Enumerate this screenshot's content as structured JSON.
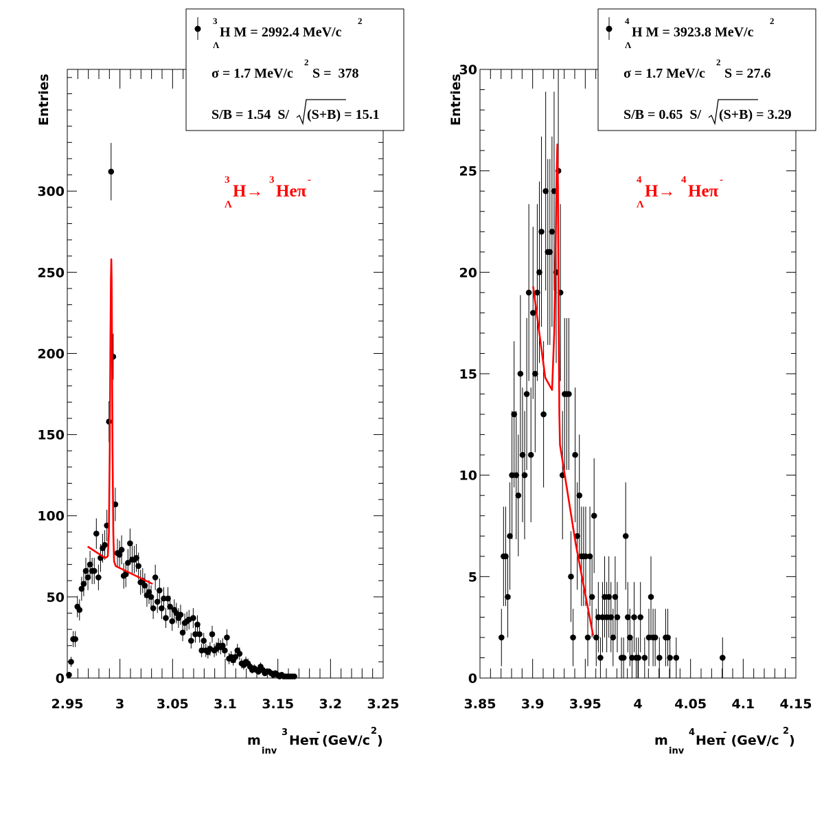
{
  "chart_data": [
    {
      "type": "scatter",
      "panel": "left",
      "ylabel": "Entries",
      "xlabel_parts": [
        "m",
        "inv",
        "3",
        "Heπ",
        "-",
        "(GeV/c",
        "2",
        ")"
      ],
      "xlim": [
        2.95,
        3.25
      ],
      "ylim": [
        0,
        375
      ],
      "xticks": [
        "2.95",
        "3",
        "3.05",
        "3.1",
        "3.15",
        "3.2",
        "3.25"
      ],
      "xtick_values": [
        2.95,
        3.0,
        3.05,
        3.1,
        3.15,
        3.2,
        3.25
      ],
      "yticks": [
        "0",
        "50",
        "100",
        "150",
        "200",
        "250",
        "300"
      ],
      "ytick_values": [
        0,
        50,
        100,
        150,
        200,
        250,
        300
      ],
      "stats": {
        "line1": [
          "3",
          "H M = 2992.4 MeV/c",
          "2",
          "Λ"
        ],
        "line2": [
          "σ = 1.7 MeV/c",
          "2",
          " S =  378"
        ],
        "line3": [
          "S/B = 1.54  S/",
          "(S+B) = 15.1"
        ]
      },
      "annotation": {
        "sup1": "3",
        "sub1": "Λ",
        "text1": "H→",
        "sup2": "3",
        "text2": "Heπ",
        "sup3": "-",
        "color": "#ff0000"
      },
      "marker_color": "#000000",
      "fit_color": "#ff0000",
      "points": [
        [
          2.9516,
          2,
          1.5
        ],
        [
          2.9536,
          10,
          3.1
        ],
        [
          2.9556,
          24,
          4.9
        ],
        [
          2.9576,
          24,
          4.9
        ],
        [
          2.9596,
          44,
          6.6
        ],
        [
          2.9616,
          42,
          6.5
        ],
        [
          2.9636,
          55,
          7.4
        ],
        [
          2.9656,
          58,
          7.6
        ],
        [
          2.9676,
          66,
          8.1
        ],
        [
          2.9696,
          62,
          7.9
        ],
        [
          2.9716,
          70,
          8.4
        ],
        [
          2.9736,
          66,
          8.1
        ],
        [
          2.9756,
          66,
          8.1
        ],
        [
          2.9776,
          89,
          9.4
        ],
        [
          2.9796,
          62,
          7.9
        ],
        [
          2.9816,
          74,
          8.6
        ],
        [
          2.9836,
          80,
          8.9
        ],
        [
          2.9856,
          82,
          9.1
        ],
        [
          2.9876,
          94,
          9.7
        ],
        [
          2.9896,
          158,
          12.6
        ],
        [
          2.9916,
          312,
          17.7
        ],
        [
          2.9936,
          198,
          14.1
        ],
        [
          2.9956,
          107,
          10.3
        ],
        [
          2.9976,
          77,
          8.8
        ],
        [
          2.9996,
          76,
          8.7
        ],
        [
          3.0016,
          79,
          8.9
        ],
        [
          3.0036,
          63,
          7.9
        ],
        [
          3.0056,
          64,
          8.0
        ],
        [
          3.0076,
          71,
          8.4
        ],
        [
          3.0096,
          83,
          9.1
        ],
        [
          3.0116,
          73,
          8.5
        ],
        [
          3.0136,
          73,
          8.5
        ],
        [
          3.0156,
          74,
          8.6
        ],
        [
          3.0176,
          69,
          8.3
        ],
        [
          3.0196,
          59,
          7.7
        ],
        [
          3.0216,
          60,
          7.7
        ],
        [
          3.0236,
          57,
          7.5
        ],
        [
          3.0256,
          51,
          7.1
        ],
        [
          3.0276,
          53,
          7.3
        ],
        [
          3.0296,
          50,
          7.1
        ],
        [
          3.0316,
          43,
          6.6
        ],
        [
          3.0336,
          62,
          7.9
        ],
        [
          3.0356,
          47,
          6.9
        ],
        [
          3.0376,
          54,
          7.3
        ],
        [
          3.0396,
          43,
          6.6
        ],
        [
          3.0416,
          49,
          7.0
        ],
        [
          3.0436,
          37,
          6.1
        ],
        [
          3.0456,
          49,
          7.0
        ],
        [
          3.0476,
          44,
          6.6
        ],
        [
          3.0496,
          35,
          5.9
        ],
        [
          3.0516,
          42,
          6.5
        ],
        [
          3.0536,
          40,
          6.3
        ],
        [
          3.0556,
          37,
          6.1
        ],
        [
          3.0576,
          39,
          6.2
        ],
        [
          3.0596,
          28,
          5.3
        ],
        [
          3.0616,
          34,
          5.8
        ],
        [
          3.0636,
          35,
          5.9
        ],
        [
          3.0656,
          36,
          6.0
        ],
        [
          3.0676,
          23,
          4.8
        ],
        [
          3.0696,
          37,
          6.1
        ],
        [
          3.0716,
          27,
          5.2
        ],
        [
          3.0736,
          33,
          5.7
        ],
        [
          3.0756,
          27,
          5.2
        ],
        [
          3.0776,
          17,
          4.1
        ],
        [
          3.0796,
          23,
          4.8
        ],
        [
          3.0816,
          17,
          4.1
        ],
        [
          3.0836,
          16,
          4.0
        ],
        [
          3.0856,
          18,
          4.2
        ],
        [
          3.0876,
          27,
          5.2
        ],
        [
          3.0896,
          17,
          4.1
        ],
        [
          3.0916,
          18,
          4.2
        ],
        [
          3.0936,
          20,
          4.5
        ],
        [
          3.0956,
          19,
          4.4
        ],
        [
          3.0976,
          20,
          4.5
        ],
        [
          3.0996,
          17,
          4.1
        ],
        [
          3.1016,
          25,
          5.0
        ],
        [
          3.1036,
          12,
          3.5
        ],
        [
          3.1056,
          13,
          3.6
        ],
        [
          3.1076,
          11,
          3.3
        ],
        [
          3.1096,
          13,
          3.6
        ],
        [
          3.1116,
          17,
          4.1
        ],
        [
          3.1136,
          15,
          3.9
        ],
        [
          3.1156,
          9,
          3.0
        ],
        [
          3.1176,
          8,
          2.8
        ],
        [
          3.1196,
          10,
          3.2
        ],
        [
          3.1216,
          9,
          3.0
        ],
        [
          3.1236,
          7,
          2.6
        ],
        [
          3.1256,
          5,
          2.2
        ],
        [
          3.1276,
          6,
          2.4
        ],
        [
          3.1296,
          5,
          2.2
        ],
        [
          3.1316,
          4,
          2.0
        ],
        [
          3.1336,
          7,
          2.6
        ],
        [
          3.1356,
          5,
          2.2
        ],
        [
          3.1376,
          3,
          1.7
        ],
        [
          3.1396,
          4,
          2.0
        ],
        [
          3.1416,
          4,
          2.0
        ],
        [
          3.1436,
          3,
          1.7
        ],
        [
          3.1456,
          2,
          1.4
        ],
        [
          3.1476,
          3,
          1.7
        ],
        [
          3.1496,
          2,
          1.4
        ],
        [
          3.1516,
          1,
          1.0
        ],
        [
          3.1536,
          2,
          1.4
        ],
        [
          3.1556,
          1,
          1.0
        ],
        [
          3.1576,
          1,
          1.0
        ],
        [
          3.1596,
          1,
          1.0
        ],
        [
          3.1616,
          1,
          1.0
        ],
        [
          3.1636,
          1,
          1.0
        ],
        [
          3.1656,
          1,
          1.0
        ]
      ],
      "fit_curve": [
        [
          2.9694,
          81
        ],
        [
          2.986,
          74
        ],
        [
          2.9885,
          75
        ],
        [
          2.9895,
          90
        ],
        [
          2.9903,
          140
        ],
        [
          2.9909,
          200
        ],
        [
          2.9914,
          245
        ],
        [
          2.9918,
          258
        ],
        [
          2.9921,
          245
        ],
        [
          2.9925,
          200
        ],
        [
          2.993,
          140
        ],
        [
          2.9937,
          90
        ],
        [
          2.9944,
          72
        ],
        [
          2.996,
          69
        ],
        [
          3.031,
          58
        ]
      ]
    },
    {
      "type": "scatter",
      "panel": "right",
      "ylabel": "Entries",
      "xlabel_parts": [
        "m",
        "inv",
        "4",
        "Heπ",
        "-",
        " (GeV/c",
        "2",
        ")"
      ],
      "xlim": [
        3.85,
        4.15
      ],
      "ylim": [
        0,
        30
      ],
      "xticks": [
        "3.85",
        "3.9",
        "3.95",
        "4",
        "4.05",
        "4.1",
        "4.15"
      ],
      "xtick_values": [
        3.85,
        3.9,
        3.95,
        4.0,
        4.05,
        4.1,
        4.15
      ],
      "yticks": [
        "0",
        "5",
        "10",
        "15",
        "20",
        "25",
        "30"
      ],
      "ytick_values": [
        0,
        5,
        10,
        15,
        20,
        25,
        30
      ],
      "stats": {
        "line1": [
          "4",
          "H M = 3923.8 MeV/c",
          "2",
          "Λ"
        ],
        "line2": [
          "σ = 1.7 MeV/c",
          "2",
          " S = 27.6"
        ],
        "line3": [
          "S/B = 0.65  S/",
          "(S+B) = 3.29"
        ]
      },
      "annotation": {
        "sup1": "4",
        "sub1": "Λ",
        "text1": "H→",
        "sup2": "4",
        "text2": "Heπ",
        "sup3": "-",
        "color": "#ff0000"
      },
      "marker_color": "#000000",
      "fit_color": "#ff0000",
      "points": [
        [
          3.8704,
          2
        ],
        [
          3.8724,
          6
        ],
        [
          3.8744,
          6
        ],
        [
          3.8764,
          4
        ],
        [
          3.8784,
          7
        ],
        [
          3.8804,
          10
        ],
        [
          3.8824,
          13
        ],
        [
          3.8844,
          10
        ],
        [
          3.8864,
          9
        ],
        [
          3.8884,
          15
        ],
        [
          3.8904,
          11
        ],
        [
          3.8924,
          10
        ],
        [
          3.8944,
          14
        ],
        [
          3.8964,
          19
        ],
        [
          3.8984,
          11
        ],
        [
          3.9004,
          18
        ],
        [
          3.9024,
          15
        ],
        [
          3.9044,
          19
        ],
        [
          3.9064,
          20
        ],
        [
          3.9084,
          22
        ],
        [
          3.9104,
          13
        ],
        [
          3.9124,
          24
        ],
        [
          3.9144,
          21
        ],
        [
          3.9164,
          21
        ],
        [
          3.9184,
          22
        ],
        [
          3.9204,
          24
        ],
        [
          3.9224,
          20
        ],
        [
          3.9244,
          25
        ],
        [
          3.9264,
          19
        ],
        [
          3.9284,
          10
        ],
        [
          3.9304,
          14
        ],
        [
          3.9324,
          14
        ],
        [
          3.9344,
          14
        ],
        [
          3.9364,
          5
        ],
        [
          3.9384,
          2
        ],
        [
          3.9404,
          11
        ],
        [
          3.9424,
          7
        ],
        [
          3.9444,
          9
        ],
        [
          3.9464,
          6
        ],
        [
          3.9484,
          6
        ],
        [
          3.9504,
          6
        ],
        [
          3.9524,
          2
        ],
        [
          3.9544,
          6
        ],
        [
          3.9564,
          4
        ],
        [
          3.9584,
          8
        ],
        [
          3.9604,
          2
        ],
        [
          3.9624,
          3
        ],
        [
          3.9644,
          1
        ],
        [
          3.9664,
          3
        ],
        [
          3.9684,
          4
        ],
        [
          3.9704,
          3
        ],
        [
          3.9724,
          4
        ],
        [
          3.9744,
          3
        ],
        [
          3.9764,
          2
        ],
        [
          3.9784,
          4
        ],
        [
          3.9804,
          3
        ],
        [
          3.9844,
          1
        ],
        [
          3.9864,
          1
        ],
        [
          3.9884,
          7
        ],
        [
          3.9904,
          3
        ],
        [
          3.9924,
          2
        ],
        [
          3.9944,
          1
        ],
        [
          3.9964,
          3
        ],
        [
          3.9984,
          1
        ],
        [
          4.0004,
          1
        ],
        [
          4.0024,
          3
        ],
        [
          4.0064,
          1
        ],
        [
          4.0104,
          2
        ],
        [
          4.0124,
          4
        ],
        [
          4.0144,
          2
        ],
        [
          4.0164,
          2
        ],
        [
          4.0204,
          1
        ],
        [
          4.0264,
          2
        ],
        [
          4.0284,
          2
        ],
        [
          4.0304,
          1
        ],
        [
          4.0364,
          1
        ],
        [
          4.0804,
          1
        ]
      ],
      "fit_curve": [
        [
          3.9005,
          19.3
        ],
        [
          3.912,
          14.8
        ],
        [
          3.9185,
          14.2
        ],
        [
          3.9205,
          17
        ],
        [
          3.9218,
          21
        ],
        [
          3.9228,
          24.8
        ],
        [
          3.9235,
          26.3
        ],
        [
          3.9241,
          24
        ],
        [
          3.9247,
          18
        ],
        [
          3.9254,
          13
        ],
        [
          3.926,
          11.5
        ],
        [
          3.941,
          6.6
        ],
        [
          3.9575,
          2.1
        ]
      ]
    }
  ]
}
